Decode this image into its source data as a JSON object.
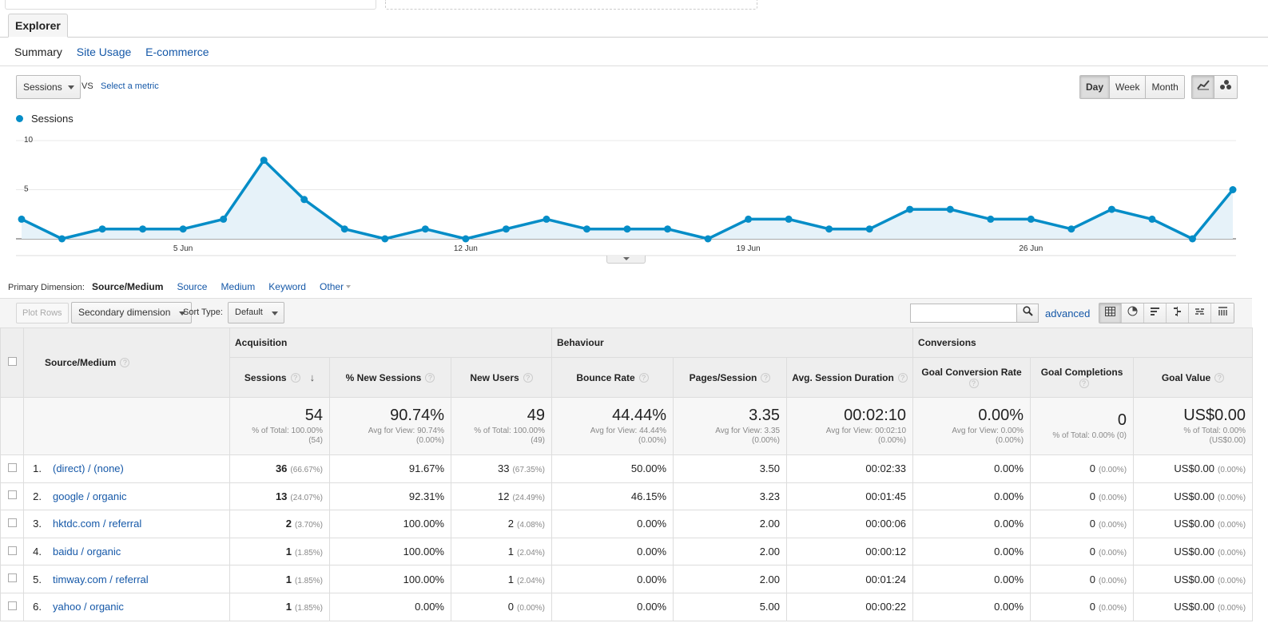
{
  "explorer_tab": "Explorer",
  "subtabs": [
    "Summary",
    "Site Usage",
    "E-commerce"
  ],
  "metric_select": "Sessions",
  "vs_label": "VS",
  "select_metric_link": "Select a metric",
  "granularity": [
    "Day",
    "Week",
    "Month"
  ],
  "granularity_active": "Day",
  "chart_view_icons": [
    "line-chart-icon",
    "motion-chart-icon"
  ],
  "chart_data": {
    "type": "area",
    "legend": "Sessions",
    "color": "#058dc7",
    "y_ticks": [
      "10",
      "5"
    ],
    "ylim": [
      0,
      10
    ],
    "x_labels": [
      "5 Jun",
      "12 Jun",
      "19 Jun",
      "26 Jun"
    ],
    "x": [
      "1 Jun",
      "2 Jun",
      "3 Jun",
      "4 Jun",
      "5 Jun",
      "6 Jun",
      "7 Jun",
      "8 Jun",
      "9 Jun",
      "10 Jun",
      "11 Jun",
      "12 Jun",
      "13 Jun",
      "14 Jun",
      "15 Jun",
      "16 Jun",
      "17 Jun",
      "18 Jun",
      "19 Jun",
      "20 Jun",
      "21 Jun",
      "22 Jun",
      "23 Jun",
      "24 Jun",
      "25 Jun",
      "26 Jun",
      "27 Jun",
      "28 Jun",
      "29 Jun",
      "30 Jun",
      "1 Jul"
    ],
    "values": [
      2,
      0,
      1,
      1,
      1,
      2,
      8,
      4,
      1,
      0,
      1,
      0,
      1,
      2,
      1,
      1,
      1,
      0,
      2,
      2,
      1,
      1,
      3,
      3,
      2,
      2,
      1,
      3,
      2,
      0,
      5
    ]
  },
  "primary_dimension": {
    "label": "Primary Dimension:",
    "current": "Source/Medium",
    "options": [
      "Source",
      "Medium",
      "Keyword",
      "Other"
    ]
  },
  "toolbar": {
    "plot_rows": "Plot Rows",
    "secondary_dimension": "Secondary dimension",
    "sort_type_label": "Sort Type:",
    "sort_type_value": "Default",
    "advanced": "advanced",
    "view_icons": [
      "table-view-icon",
      "pie-view-icon",
      "performance-view-icon",
      "comparison-view-icon",
      "term-cloud-icon",
      "pivot-view-icon"
    ]
  },
  "table": {
    "groups": [
      "Acquisition",
      "Behaviour",
      "Conversions"
    ],
    "dimension_header": "Source/Medium",
    "columns": [
      "Sessions",
      "% New Sessions",
      "New Users",
      "Bounce Rate",
      "Pages/Session",
      "Avg. Session Duration",
      "Goal Conversion Rate",
      "Goal Completions",
      "Goal Value"
    ],
    "totals": [
      {
        "big": "54",
        "l1": "% of Total: 100.00%",
        "l2": "(54)"
      },
      {
        "big": "90.74%",
        "l1": "Avg for View: 90.74%",
        "l2": "(0.00%)"
      },
      {
        "big": "49",
        "l1": "% of Total: 100.00%",
        "l2": "(49)"
      },
      {
        "big": "44.44%",
        "l1": "Avg for View: 44.44%",
        "l2": "(0.00%)"
      },
      {
        "big": "3.35",
        "l1": "Avg for View: 3.35",
        "l2": "(0.00%)"
      },
      {
        "big": "00:02:10",
        "l1": "Avg for View: 00:02:10",
        "l2": "(0.00%)"
      },
      {
        "big": "0.00%",
        "l1": "Avg for View: 0.00%",
        "l2": "(0.00%)"
      },
      {
        "big": "0",
        "l1": "% of Total: 0.00% (0)",
        "l2": ""
      },
      {
        "big": "US$0.00",
        "l1": "% of Total: 0.00%",
        "l2": "(US$0.00)"
      }
    ],
    "rows": [
      {
        "rank": "1.",
        "source": "(direct) / (none)",
        "sessions": "36",
        "sessions_pct": "(66.67%)",
        "new_sessions": "91.67%",
        "new_users": "33",
        "new_users_pct": "(67.35%)",
        "bounce": "50.00%",
        "pages": "3.50",
        "duration": "00:02:33",
        "conv_rate": "0.00%",
        "completions": "0",
        "completions_pct": "(0.00%)",
        "value": "US$0.00",
        "value_pct": "(0.00%)"
      },
      {
        "rank": "2.",
        "source": "google / organic",
        "sessions": "13",
        "sessions_pct": "(24.07%)",
        "new_sessions": "92.31%",
        "new_users": "12",
        "new_users_pct": "(24.49%)",
        "bounce": "46.15%",
        "pages": "3.23",
        "duration": "00:01:45",
        "conv_rate": "0.00%",
        "completions": "0",
        "completions_pct": "(0.00%)",
        "value": "US$0.00",
        "value_pct": "(0.00%)"
      },
      {
        "rank": "3.",
        "source": "hktdc.com / referral",
        "sessions": "2",
        "sessions_pct": "(3.70%)",
        "new_sessions": "100.00%",
        "new_users": "2",
        "new_users_pct": "(4.08%)",
        "bounce": "0.00%",
        "pages": "2.00",
        "duration": "00:00:06",
        "conv_rate": "0.00%",
        "completions": "0",
        "completions_pct": "(0.00%)",
        "value": "US$0.00",
        "value_pct": "(0.00%)"
      },
      {
        "rank": "4.",
        "source": "baidu / organic",
        "sessions": "1",
        "sessions_pct": "(1.85%)",
        "new_sessions": "100.00%",
        "new_users": "1",
        "new_users_pct": "(2.04%)",
        "bounce": "0.00%",
        "pages": "2.00",
        "duration": "00:00:12",
        "conv_rate": "0.00%",
        "completions": "0",
        "completions_pct": "(0.00%)",
        "value": "US$0.00",
        "value_pct": "(0.00%)"
      },
      {
        "rank": "5.",
        "source": "timway.com / referral",
        "sessions": "1",
        "sessions_pct": "(1.85%)",
        "new_sessions": "100.00%",
        "new_users": "1",
        "new_users_pct": "(2.04%)",
        "bounce": "0.00%",
        "pages": "2.00",
        "duration": "00:01:24",
        "conv_rate": "0.00%",
        "completions": "0",
        "completions_pct": "(0.00%)",
        "value": "US$0.00",
        "value_pct": "(0.00%)"
      },
      {
        "rank": "6.",
        "source": "yahoo / organic",
        "sessions": "1",
        "sessions_pct": "(1.85%)",
        "new_sessions": "0.00%",
        "new_users": "0",
        "new_users_pct": "(0.00%)",
        "bounce": "0.00%",
        "pages": "5.00",
        "duration": "00:00:22",
        "conv_rate": "0.00%",
        "completions": "0",
        "completions_pct": "(0.00%)",
        "value": "US$0.00",
        "value_pct": "(0.00%)"
      }
    ]
  }
}
